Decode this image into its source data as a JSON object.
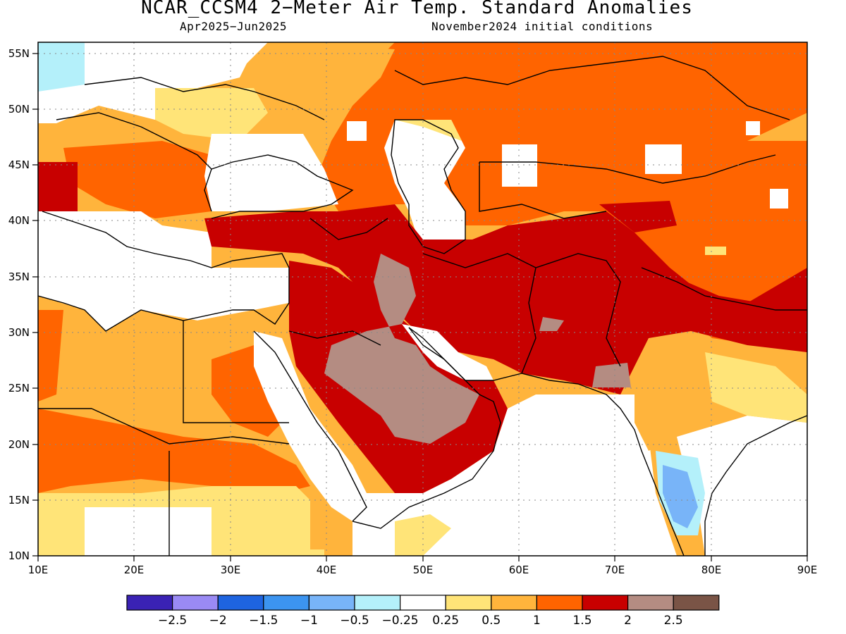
{
  "title": "NCAR_CCSM4 2−Meter Air Temp. Standard Anomalies",
  "subtitle_left": "Apr2025−Jun2025",
  "subtitle_right": "November2024 initial conditions",
  "map": {
    "lon_range": [
      10,
      90
    ],
    "lat_range": [
      10,
      56
    ],
    "lon_ticks": [
      "10E",
      "20E",
      "30E",
      "40E",
      "50E",
      "60E",
      "70E",
      "80E",
      "90E"
    ],
    "lat_ticks": [
      "55N",
      "50N",
      "45N",
      "40N",
      "35N",
      "30N",
      "25N",
      "20N",
      "15N",
      "10N"
    ],
    "grid": "dotted every 10° lon / 5° lat"
  },
  "colorbar": {
    "colors": [
      "#3a22b4",
      "#9a8af4",
      "#1e64e0",
      "#3c94f0",
      "#78b4f8",
      "#b4f0fa",
      "#ffffff",
      "#ffe478",
      "#ffb43c",
      "#ff6400",
      "#c80000",
      "#b48c82",
      "#7a5446"
    ],
    "labels": [
      "−2.5",
      "−2",
      "−1.5",
      "−1",
      "−0.5",
      "−0.25",
      "0.25",
      "0.5",
      "1",
      "1.5",
      "2",
      "2.5"
    ]
  }
}
